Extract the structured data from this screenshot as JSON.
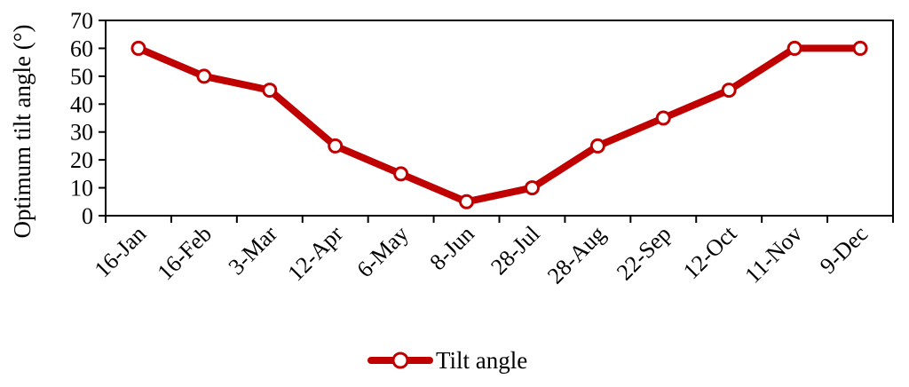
{
  "chart_data": {
    "type": "line",
    "categories": [
      "16-Jan",
      "16-Feb",
      "3-Mar",
      "12-Apr",
      "6-May",
      "8-Jun",
      "28-Jul",
      "28-Aug",
      "22-Sep",
      "12-Oct",
      "11-Nov",
      "9-Dec"
    ],
    "series": [
      {
        "name": "Tilt angle",
        "values": [
          60,
          50,
          45,
          25,
          15,
          5,
          10,
          25,
          35,
          45,
          60,
          60
        ],
        "color": "#c00000"
      }
    ],
    "ylabel": "Optimum tilt  angle (°)",
    "xlabel": "",
    "ylim": [
      0,
      70
    ],
    "yticks": [
      0,
      10,
      20,
      30,
      40,
      50,
      60,
      70
    ],
    "grid": false,
    "legend": "bottom",
    "marker": "hollow-circle"
  }
}
